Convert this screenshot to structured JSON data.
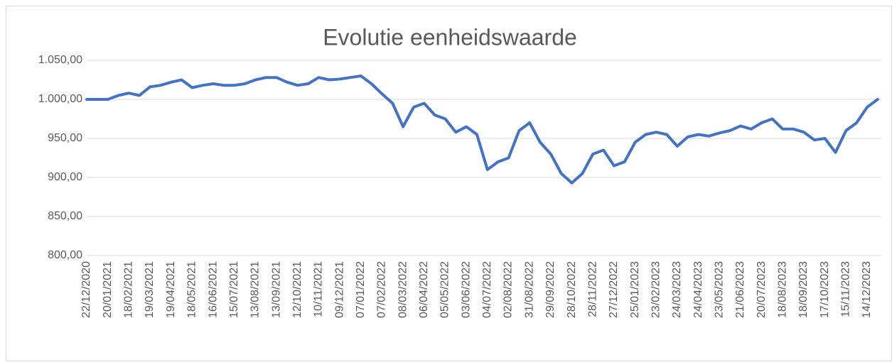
{
  "chart_data": {
    "type": "line",
    "title": "Evolutie eenheidswaarde",
    "categories": [
      "22/12/2020",
      null,
      "20/01/2021",
      null,
      "18/02/2021",
      null,
      "19/03/2021",
      null,
      "19/04/2021",
      null,
      "18/05/2021",
      null,
      "16/06/2021",
      null,
      "15/07/2021",
      null,
      "13/08/2021",
      null,
      "13/09/2021",
      null,
      "12/10/2021",
      null,
      "10/11/2021",
      null,
      "09/12/2021",
      null,
      "07/01/2022",
      null,
      "07/02/2022",
      null,
      "08/03/2022",
      null,
      "06/04/2022",
      null,
      "05/05/2022",
      null,
      "03/06/2022",
      null,
      "04/07/2022",
      null,
      "02/08/2022",
      null,
      "31/08/2022",
      null,
      "29/09/2022",
      null,
      "28/10/2022",
      null,
      "28/11/2022",
      null,
      "27/12/2022",
      null,
      "25/01/2023",
      null,
      "23/02/2023",
      null,
      "24/03/2023",
      null,
      "24/04/2023",
      null,
      "23/05/2023",
      null,
      "21/06/2023",
      null,
      "20/07/2023",
      null,
      "18/08/2023",
      null,
      "18/09/2023",
      null,
      "17/10/2023",
      null,
      "15/11/2023",
      null,
      "14/12/2023",
      null
    ],
    "series": [
      {
        "name": "Eenheidswaarde",
        "color": "#4472c4",
        "values": [
          1000,
          1000,
          1000,
          1005,
          1008,
          1005,
          1016,
          1018,
          1022,
          1025,
          1015,
          1018,
          1020,
          1018,
          1018,
          1020,
          1025,
          1028,
          1028,
          1022,
          1018,
          1020,
          1028,
          1025,
          1026,
          1028,
          1030,
          1020,
          1007,
          995,
          965,
          990,
          995,
          980,
          975,
          958,
          965,
          955,
          910,
          920,
          925,
          960,
          970,
          945,
          930,
          905,
          893,
          905,
          930,
          935,
          915,
          920,
          945,
          955,
          958,
          955,
          940,
          952,
          955,
          953,
          957,
          960,
          966,
          962,
          970,
          975,
          962,
          962,
          958,
          948,
          950,
          932,
          960,
          970,
          990,
          1000
        ]
      }
    ],
    "ylim": [
      800,
      1050
    ],
    "yticks": [
      {
        "value": 800,
        "label": "800,00"
      },
      {
        "value": 850,
        "label": "850,00"
      },
      {
        "value": 900,
        "label": "900,00"
      },
      {
        "value": 950,
        "label": "950,00"
      },
      {
        "value": 1000,
        "label": "1.000,00"
      },
      {
        "value": 1050,
        "label": "1.050,00"
      }
    ],
    "grid": true
  }
}
